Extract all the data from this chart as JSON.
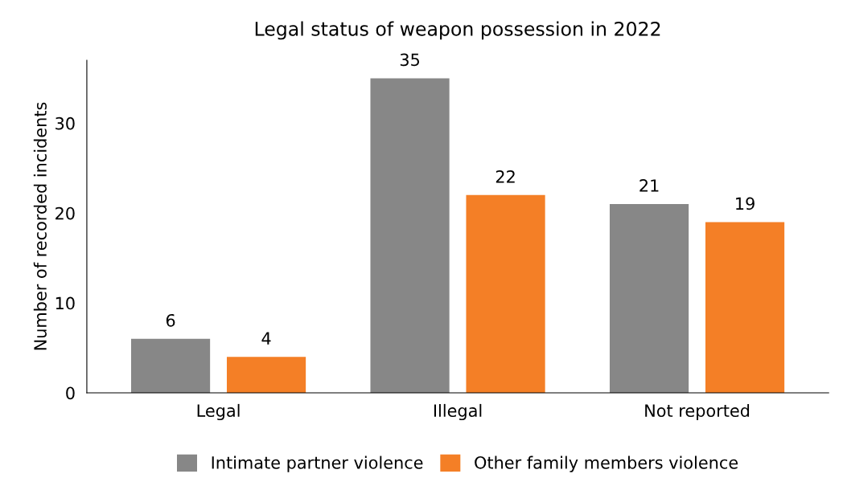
{
  "chart_data": {
    "type": "bar",
    "title": "Legal status of weapon possession in 2022",
    "ylabel": "Number of recorded incidents",
    "categories": [
      "Legal",
      "Illegal",
      "Not reported"
    ],
    "series": [
      {
        "name": "Intimate partner violence",
        "color": "#878787",
        "values": [
          6,
          35,
          21
        ]
      },
      {
        "name": "Other family members violence",
        "color": "#f47f26",
        "values": [
          4,
          22,
          19
        ]
      }
    ],
    "ylim": [
      0,
      37
    ],
    "yticks": [
      0,
      10,
      20,
      30
    ],
    "grid": false,
    "legend": "bottom",
    "data_labels": true
  }
}
